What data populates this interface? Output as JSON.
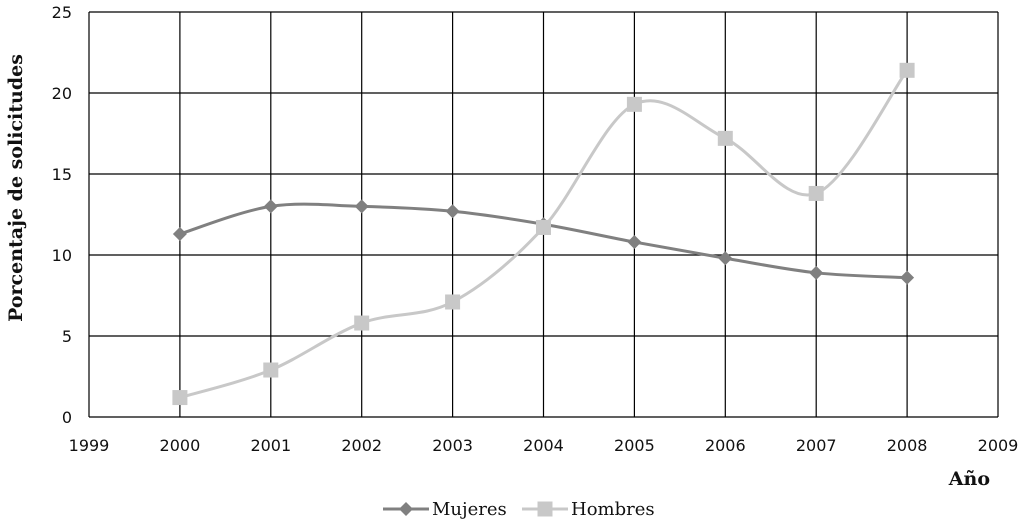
{
  "chart_data": {
    "type": "line",
    "title": "",
    "xlabel": "Año",
    "ylabel": "Porcentaje de solicitudes",
    "xlim": [
      1999,
      2009
    ],
    "ylim": [
      0,
      25
    ],
    "x_ticks": [
      "1999",
      "2000",
      "2001",
      "2002",
      "2003",
      "2004",
      "2005",
      "2006",
      "2007",
      "2008",
      "2009"
    ],
    "y_ticks": [
      "0",
      "5",
      "10",
      "15",
      "20",
      "25"
    ],
    "grid": true,
    "legend_position": "bottom",
    "x": [
      2000,
      2001,
      2002,
      2003,
      2004,
      2005,
      2006,
      2007,
      2008
    ],
    "series": [
      {
        "name": "Mujeres",
        "values": [
          11.3,
          13.0,
          13.0,
          12.7,
          11.9,
          10.8,
          9.8,
          8.9,
          8.6
        ],
        "color": "#808080",
        "marker": "diamond",
        "smooth": true
      },
      {
        "name": "Hombres",
        "values": [
          1.2,
          2.9,
          5.8,
          7.1,
          11.7,
          19.3,
          17.2,
          13.8,
          21.4
        ],
        "color": "#c8c8c8",
        "marker": "square",
        "smooth": true
      }
    ]
  }
}
